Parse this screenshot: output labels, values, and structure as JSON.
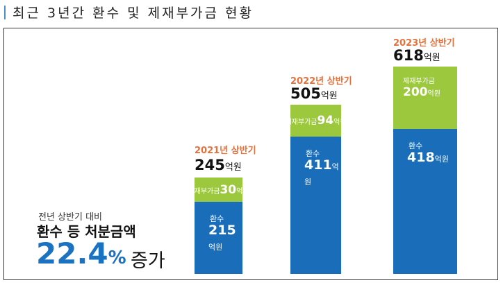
{
  "title": "최근 3년간 환수 및 제재부가금 현황",
  "summary": {
    "sub": "전년 상반기 대비",
    "head": "환수 등 처분금액",
    "percent": "22.4",
    "percent_sign": "%",
    "increase": "증가"
  },
  "colors": {
    "refund": "#1a6db8",
    "surcharge": "#9cc83e",
    "year": "#e8703a",
    "percent": "#1a72c0"
  },
  "chart_data": {
    "type": "bar",
    "stacked": true,
    "unit": "억원",
    "categories": [
      "2021년 상반기",
      "2022년 상반기",
      "2023년 상반기"
    ],
    "totals": [
      "245",
      "505",
      "618"
    ],
    "series": [
      {
        "name": "환수",
        "values": [
          "215",
          "411",
          "418"
        ]
      },
      {
        "name": "제재부가금",
        "values": [
          "30",
          "94",
          "200"
        ]
      }
    ]
  }
}
